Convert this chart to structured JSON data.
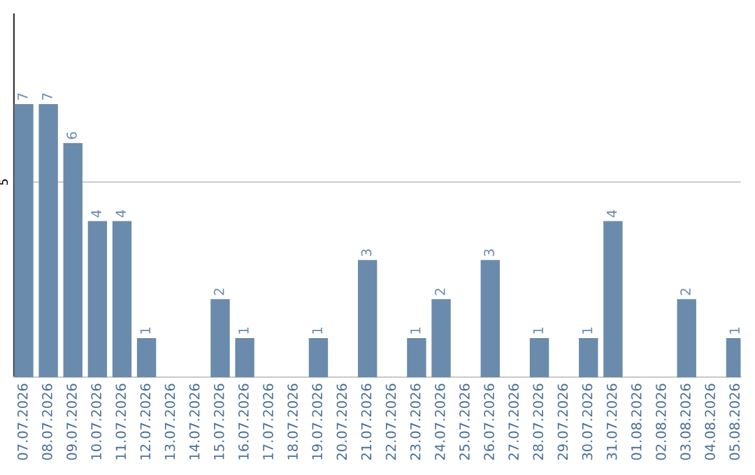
{
  "chart_data": {
    "type": "bar",
    "categories": [
      "07.07.2026",
      "08.07.2026",
      "09.07.2026",
      "10.07.2026",
      "11.07.2026",
      "12.07.2026",
      "13.07.2026",
      "14.07.2026",
      "15.07.2026",
      "16.07.2026",
      "17.07.2026",
      "18.07.2026",
      "19.07.2026",
      "20.07.2026",
      "21.07.2026",
      "22.07.2026",
      "23.07.2026",
      "24.07.2026",
      "25.07.2026",
      "26.07.2026",
      "27.07.2026",
      "28.07.2026",
      "29.07.2026",
      "30.07.2026",
      "31.07.2026",
      "01.08.2026",
      "02.08.2026",
      "03.08.2026",
      "04.08.2026",
      "05.08.2026"
    ],
    "values": [
      7,
      7,
      6,
      4,
      4,
      1,
      0,
      0,
      2,
      1,
      0,
      0,
      1,
      0,
      3,
      0,
      1,
      2,
      0,
      3,
      0,
      1,
      0,
      1,
      4,
      0,
      0,
      2,
      0,
      1
    ],
    "value_labels": [
      "7",
      "7",
      "6",
      "4",
      "4",
      "1",
      null,
      null,
      "2",
      "1",
      null,
      null,
      "1",
      null,
      "3",
      null,
      "1",
      "2",
      null,
      "3",
      null,
      "1",
      null,
      "1",
      "4",
      null,
      null,
      "2",
      null,
      "1"
    ],
    "color": "#6a8bab",
    "ylim": [
      0,
      9.3
    ],
    "yticks": [
      5
    ],
    "grid": "y",
    "legend": false
  }
}
